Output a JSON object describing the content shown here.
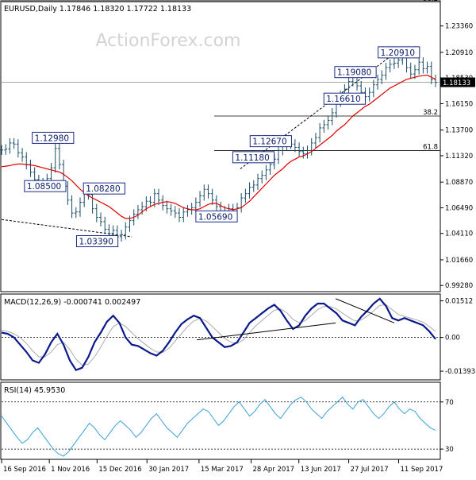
{
  "chart_data": [
    {
      "type": "line",
      "panel": "price",
      "header": "EURUSD,Daily  1.17846 1.18320 1.17722 1.18133",
      "watermark": "ActionForex.com",
      "ylim": [
        0.9878,
        1.2562
      ],
      "y_ticks": [
        0.9928,
        1.0166,
        1.0411,
        1.0649,
        1.0887,
        1.1132,
        1.137,
        1.1615,
        1.1853,
        1.2091,
        1.2336
      ],
      "y_tick_labels": [
        "0.99280",
        "1.01660",
        "1.04110",
        "1.06490",
        "1.08870",
        "1.11320",
        "1.13700",
        "1.16150",
        "1.18530",
        "1.20910",
        "1.23360"
      ],
      "current_price": 1.18133,
      "current_price_label": "1.18133",
      "fib_levels": [
        {
          "label": "38.2",
          "value": 1.256,
          "from": 0.0,
          "to": 1.0
        },
        {
          "label": "38.2",
          "value": 1.15,
          "from": 0.49,
          "to": 1.0
        },
        {
          "label": "61.8",
          "value": 1.118,
          "from": 0.49,
          "to": 1.0
        }
      ],
      "annotations": [
        {
          "text": "1.12980",
          "x": 0.078,
          "y": 1.1298
        },
        {
          "text": "1.08500",
          "x": 0.06,
          "y": 1.085
        },
        {
          "text": "1.08280",
          "x": 0.196,
          "y": 1.0828
        },
        {
          "text": "1.03390",
          "x": 0.18,
          "y": 1.0339
        },
        {
          "text": "1.05690",
          "x": 0.455,
          "y": 1.0569
        },
        {
          "text": "1.12670",
          "x": 0.58,
          "y": 1.1267
        },
        {
          "text": "1.11180",
          "x": 0.54,
          "y": 1.1118
        },
        {
          "text": "1.19080",
          "x": 0.775,
          "y": 1.1908
        },
        {
          "text": "1.20910",
          "x": 0.875,
          "y": 1.2091
        },
        {
          "text": "1.16610",
          "x": 0.75,
          "y": 1.1661
        }
      ],
      "trendlines": [
        {
          "style": "dashed",
          "x1": 0.0,
          "y1": 1.054,
          "x2": 0.3,
          "y2": 1.038
        },
        {
          "style": "dashed",
          "x1": 0.55,
          "y1": 1.101,
          "x2": 0.895,
          "y2": 1.205
        }
      ],
      "close": [
        1.1185,
        1.1195,
        1.125,
        1.124,
        1.116,
        1.112,
        1.105,
        1.098,
        1.091,
        1.088,
        1.086,
        1.092,
        1.102,
        1.12,
        1.105,
        1.085,
        1.072,
        1.06,
        1.061,
        1.07,
        1.08,
        1.077,
        1.064,
        1.056,
        1.052,
        1.045,
        1.041,
        1.044,
        1.038,
        1.04,
        1.047,
        1.053,
        1.059,
        1.063,
        1.066,
        1.071,
        1.07,
        1.078,
        1.072,
        1.067,
        1.064,
        1.062,
        1.06,
        1.056,
        1.061,
        1.063,
        1.065,
        1.07,
        1.076,
        1.082,
        1.078,
        1.072,
        1.066,
        1.062,
        1.062,
        1.064,
        1.06,
        1.065,
        1.074,
        1.078,
        1.084,
        1.086,
        1.092,
        1.095,
        1.1,
        1.105,
        1.11,
        1.118,
        1.122,
        1.125,
        1.124,
        1.121,
        1.117,
        1.115,
        1.118,
        1.125,
        1.13,
        1.139,
        1.142,
        1.146,
        1.153,
        1.163,
        1.169,
        1.175,
        1.182,
        1.186,
        1.178,
        1.172,
        1.168,
        1.172,
        1.179,
        1.184,
        1.188,
        1.195,
        1.198,
        1.199,
        1.202,
        1.205,
        1.195,
        1.189,
        1.193,
        1.2,
        1.194,
        1.196,
        1.184,
        1.1813
      ],
      "ma": [
        1.103,
        1.1035,
        1.104,
        1.105,
        1.1055,
        1.1055,
        1.105,
        1.1045,
        1.104,
        1.103,
        1.102,
        1.101,
        1.1,
        1.099,
        1.098,
        1.096,
        1.093,
        1.09,
        1.086,
        1.082,
        1.079,
        1.076,
        1.074,
        1.072,
        1.07,
        1.068,
        1.066,
        1.063,
        1.06,
        1.057,
        1.055,
        1.055,
        1.056,
        1.058,
        1.061,
        1.064,
        1.066,
        1.068,
        1.069,
        1.07,
        1.0705,
        1.07,
        1.069,
        1.067,
        1.065,
        1.064,
        1.063,
        1.063,
        1.064,
        1.066,
        1.068,
        1.069,
        1.069,
        1.067,
        1.065,
        1.064,
        1.063,
        1.064,
        1.065,
        1.068,
        1.071,
        1.075,
        1.079,
        1.083,
        1.087,
        1.091,
        1.095,
        1.098,
        1.101,
        1.105,
        1.108,
        1.11,
        1.112,
        1.113,
        1.115,
        1.117,
        1.12,
        1.123,
        1.126,
        1.129,
        1.132,
        1.136,
        1.139,
        1.142,
        1.146,
        1.15,
        1.153,
        1.156,
        1.159,
        1.161,
        1.164,
        1.167,
        1.17,
        1.173,
        1.176,
        1.178,
        1.18,
        1.182,
        1.184,
        1.185,
        1.186,
        1.187,
        1.1875,
        1.188,
        1.186,
        1.184
      ]
    },
    {
      "type": "line",
      "panel": "macd",
      "header": "MACD(12,26,9) -0.000741 0.002497",
      "ylim": [
        -0.0172,
        0.0176
      ],
      "y_ticks": [
        0.01512,
        0.0,
        -0.013938
      ],
      "y_tick_labels": [
        "0.01512",
        "0.00",
        "-0.013938"
      ],
      "zero_line": 0.0,
      "trendlines": [
        {
          "style": "solid",
          "x1": 0.45,
          "y1": -0.001,
          "x2": 0.77,
          "y2": 0.006
        },
        {
          "style": "solid",
          "x1": 0.77,
          "y1": 0.016,
          "x2": 0.905,
          "y2": 0.006
        }
      ],
      "macd": [
        0.002,
        0.0015,
        0.0,
        -0.003,
        -0.006,
        -0.0095,
        -0.0105,
        -0.007,
        -0.002,
        0.0015,
        -0.003,
        -0.0095,
        -0.0135,
        -0.0125,
        -0.008,
        -0.002,
        0.002,
        0.0065,
        0.009,
        0.006,
        0.0,
        -0.003,
        -0.0035,
        -0.005,
        -0.0065,
        -0.0075,
        -0.0055,
        -0.002,
        0.002,
        0.0055,
        0.0075,
        0.009,
        0.008,
        0.004,
        0.0,
        -0.002,
        -0.004,
        -0.0035,
        -0.002,
        0.002,
        0.006,
        0.008,
        0.01,
        0.012,
        0.0135,
        0.011,
        0.007,
        0.0035,
        0.005,
        0.009,
        0.012,
        0.014,
        0.014,
        0.012,
        0.01,
        0.007,
        0.006,
        0.005,
        0.0085,
        0.011,
        0.014,
        0.016,
        0.013,
        0.008,
        0.007,
        0.008,
        0.007,
        0.006,
        0.005,
        0.0025,
        -0.0007
      ],
      "signal": [
        0.003,
        0.0025,
        0.0015,
        0.0,
        -0.0025,
        -0.0055,
        -0.008,
        -0.008,
        -0.006,
        -0.003,
        -0.002,
        -0.005,
        -0.009,
        -0.0115,
        -0.011,
        -0.008,
        -0.004,
        0.0005,
        0.0045,
        0.006,
        0.0045,
        0.002,
        -0.0005,
        -0.0025,
        -0.0045,
        -0.006,
        -0.0062,
        -0.0045,
        -0.0015,
        0.0015,
        0.0045,
        0.0068,
        0.0078,
        0.0068,
        0.0045,
        0.002,
        -0.0005,
        -0.002,
        -0.0025,
        -0.001,
        0.002,
        0.0048,
        0.007,
        0.0092,
        0.0112,
        0.0118,
        0.0102,
        0.0075,
        0.006,
        0.007,
        0.0092,
        0.0115,
        0.0128,
        0.0128,
        0.0118,
        0.01,
        0.0083,
        0.0068,
        0.0072,
        0.0088,
        0.011,
        0.0132,
        0.0135,
        0.0115,
        0.0095,
        0.0087,
        0.008,
        0.0072,
        0.0063,
        0.0045,
        0.0025
      ]
    },
    {
      "type": "line",
      "panel": "rsi",
      "header": "RSI(14) 45.9530",
      "ylim": [
        22,
        86
      ],
      "y_ticks": [
        70,
        30
      ],
      "y_tick_labels": [
        "70",
        "30"
      ],
      "rsi": [
        58,
        52,
        46,
        40,
        35,
        38,
        44,
        48,
        42,
        36,
        30,
        26,
        24,
        28,
        34,
        40,
        46,
        52,
        48,
        42,
        38,
        44,
        50,
        54,
        50,
        46,
        40,
        44,
        50,
        56,
        60,
        54,
        48,
        44,
        40,
        46,
        52,
        56,
        60,
        64,
        62,
        56,
        50,
        54,
        60,
        66,
        70,
        64,
        58,
        62,
        68,
        72,
        66,
        60,
        56,
        62,
        68,
        72,
        74,
        70,
        64,
        60,
        56,
        62,
        66,
        70,
        74,
        68,
        64,
        70,
        72,
        66,
        60,
        56,
        60,
        66,
        70,
        64,
        60,
        64,
        62,
        56,
        52,
        48,
        46
      ]
    },
    {
      "type": "axis",
      "x_tick_labels": [
        "16 Sep 2016",
        "1 Nov 2016",
        "15 Dec 2016",
        "30 Jan 2017",
        "15 Mar 2017",
        "28 Apr 2017",
        "13 Jun 2017",
        "27 Jul 2017",
        "11 Sep 2017"
      ],
      "x_tick_positions": [
        0.0,
        0.11,
        0.22,
        0.335,
        0.455,
        0.575,
        0.685,
        0.8,
        0.915
      ]
    }
  ]
}
